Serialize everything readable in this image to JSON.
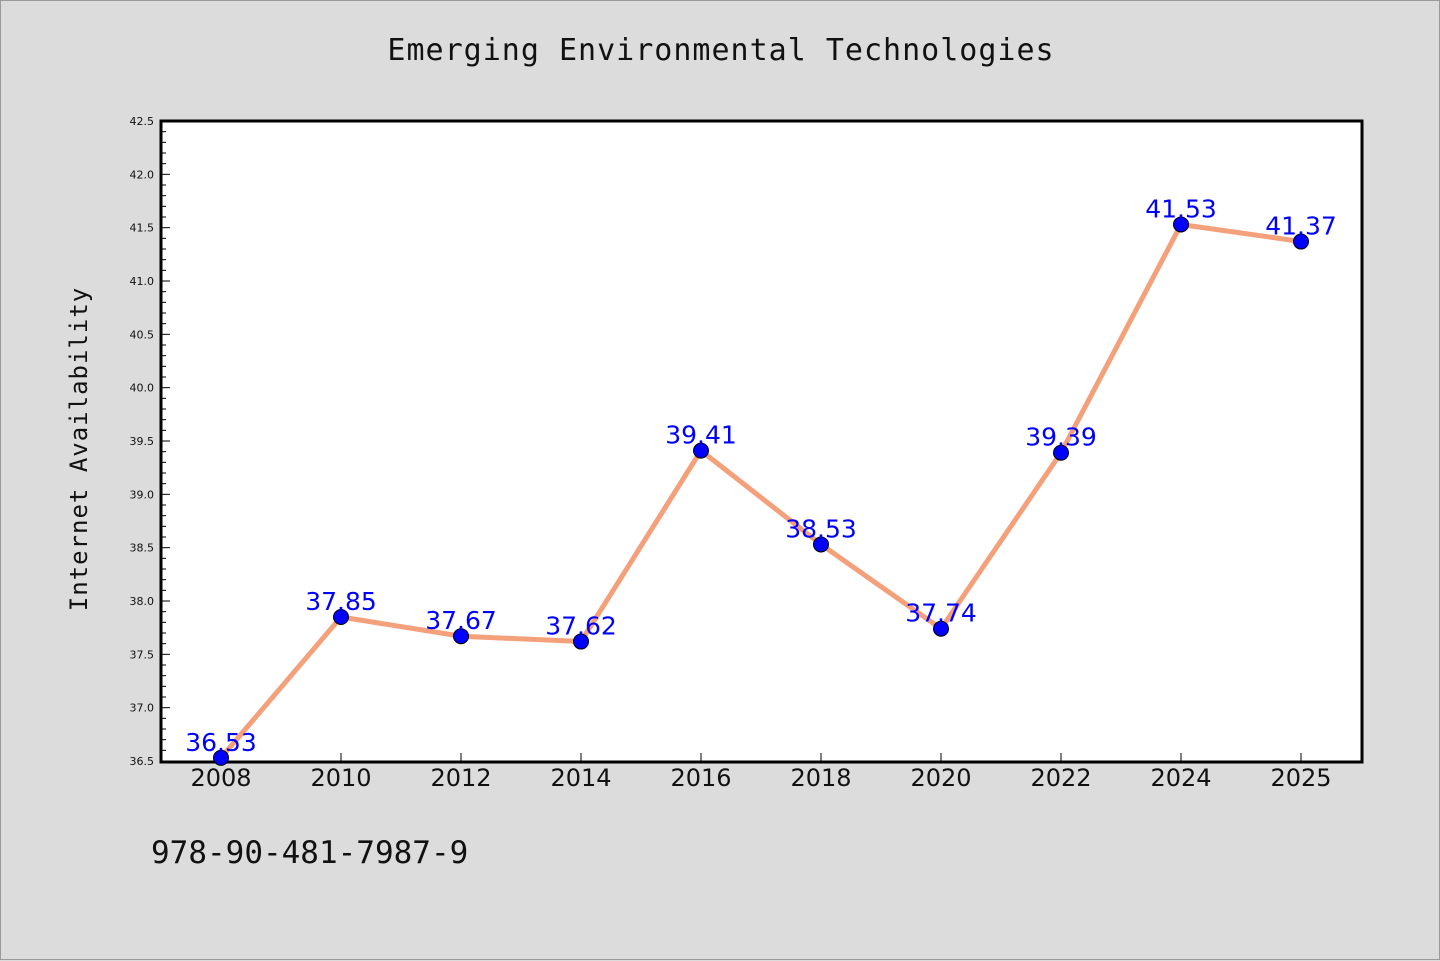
{
  "page": {
    "isbn": "978-90-481-7987-9"
  },
  "chart_data": {
    "type": "line",
    "title": "Emerging Environmental Technologies",
    "xlabel": "",
    "ylabel": "Internet Availability",
    "categories": [
      "2008",
      "2010",
      "2012",
      "2014",
      "2016",
      "2018",
      "2020",
      "2022",
      "2024",
      "2025"
    ],
    "series": [
      {
        "values": [
          36.53,
          37.85,
          37.67,
          37.62,
          39.41,
          38.53,
          37.74,
          39.39,
          41.53,
          41.37
        ],
        "line_color": "#f4a07a",
        "marker_color": "#0000ff"
      }
    ],
    "data_labels": [
      "36.53",
      "37.85",
      "37.67",
      "37.62",
      "39.41",
      "38.53",
      "37.74",
      "39.39",
      "41.53",
      "41.37"
    ],
    "ylim": [
      36.5,
      42.5
    ],
    "yticks": [
      "36.5",
      "37.0",
      "37.5",
      "38.0",
      "38.5",
      "39.0",
      "39.5",
      "40.0",
      "40.5",
      "41.0",
      "41.5",
      "42.0",
      "42.5"
    ],
    "grid": false,
    "legend": "none"
  }
}
